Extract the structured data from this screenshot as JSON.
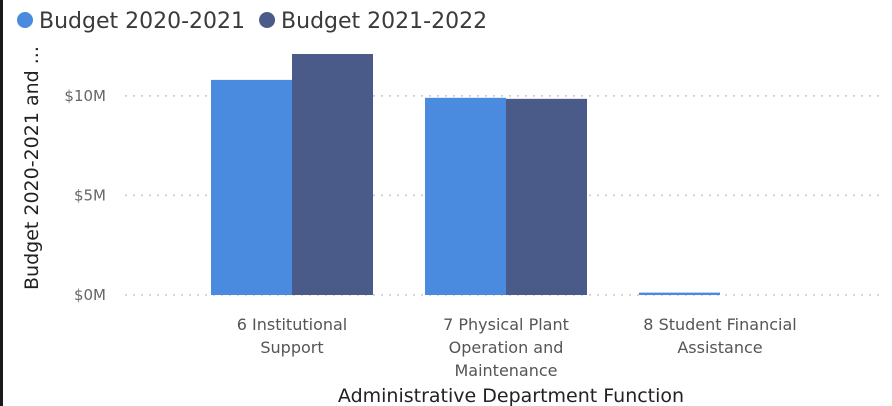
{
  "chart_data": {
    "type": "bar",
    "title": "",
    "xlabel": "Administrative Department Function",
    "ylabel": "Budget 2020-2021 and ...",
    "categories": [
      [
        "6 Institutional",
        "Support"
      ],
      [
        "7 Physical Plant",
        "Operation and",
        "Maintenance"
      ],
      [
        "8 Student Financial",
        "Assistance"
      ]
    ],
    "series": [
      {
        "name": "Budget 2020-2021",
        "color": "#4a8bdf",
        "values": [
          10.8,
          9.9,
          0.12
        ]
      },
      {
        "name": "Budget 2021-2022",
        "color": "#4b5b89",
        "values": [
          12.1,
          9.85,
          0
        ]
      }
    ],
    "yticks": [
      {
        "value": 0,
        "label": "$0M"
      },
      {
        "value": 5,
        "label": "$5M"
      },
      {
        "value": 10,
        "label": "$10M"
      }
    ],
    "ylim": [
      0,
      12.1
    ],
    "grid": true,
    "legend_position": "top-left",
    "gridline_color": "#c8c8c8"
  }
}
